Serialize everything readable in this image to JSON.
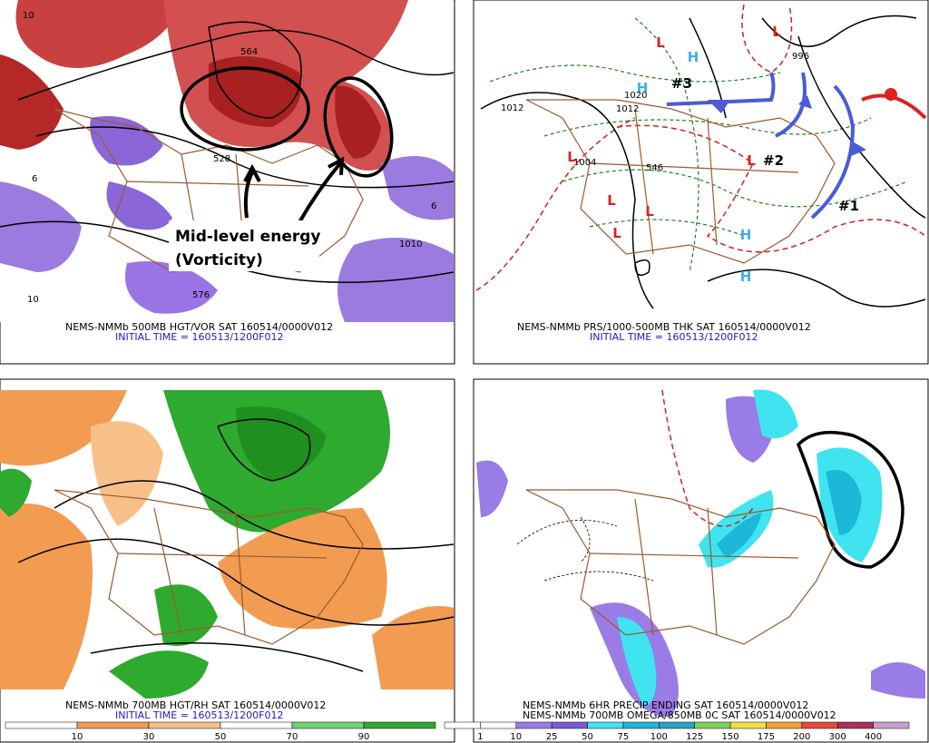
{
  "panels": [
    {
      "title": "NEMS-NMMb 500MB HGT/VOR SAT 160514/0000V012",
      "subtitle": "INITIAL TIME = 160513/1200F012",
      "annotations": [
        "Mid-level energy",
        "(Vorticity)"
      ],
      "contour_labels": [
        "10",
        "6",
        "528",
        "576",
        "10",
        "6",
        "1010",
        "564"
      ]
    },
    {
      "title": "NEMS-NMMb PRS/1000-500MB THK SAT 160514/0000V012",
      "subtitle": "INITIAL TIME = 160513/1200F012",
      "annotations": [
        "#1",
        "#2",
        "#3"
      ],
      "centers": [
        "L",
        "L",
        "L",
        "L",
        "L",
        "L",
        "L",
        "H",
        "H",
        "H",
        "H"
      ],
      "contour_labels": [
        "1012",
        "996",
        "1020",
        "1012",
        "1004",
        "546"
      ]
    },
    {
      "title": "NEMS-NMMb 700MB HGT/RH SAT 160514/0000V012",
      "subtitle": "INITIAL TIME = 160513/1200F012",
      "colorbar": [
        10,
        30,
        50,
        70,
        90
      ],
      "colorbar_colors": [
        "#ffffff",
        "#f29c52",
        "#f7c089",
        "#ffffff",
        "#6fd36f",
        "#2eaa2e"
      ]
    },
    {
      "title": "NEMS-NMMb 6HR PRECIP ENDING SAT 160514/0000V012",
      "subtitle": "NEMS-NMMb 700MB OMEGA/850MB 0C SAT 160514/0000V012",
      "colorbar": [
        1,
        10,
        25,
        50,
        75,
        100,
        125,
        150,
        175,
        200,
        300,
        400
      ],
      "colorbar_colors": [
        "#ffffff",
        "#ffffff",
        "#9a7ce6",
        "#7a5ad8",
        "#3fe4f0",
        "#1cb8d8",
        "#2aa0c8",
        "#7fd35a",
        "#f0e040",
        "#f6a030",
        "#e84a3a",
        "#b03060",
        "#c8a0d0"
      ]
    }
  ]
}
